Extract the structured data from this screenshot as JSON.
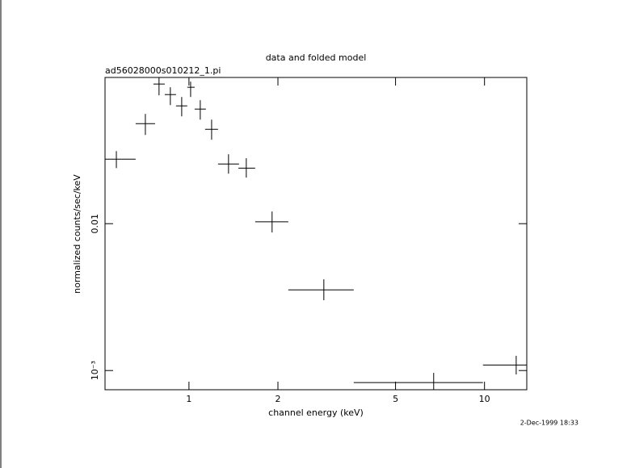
{
  "chart_data": {
    "type": "errorbar",
    "title": "data and folded model",
    "subtitle": "ad56028000s010212_1.pi",
    "x_label": "channel energy (keV)",
    "y_label": "normalized counts/sec/keV",
    "timestamp": "2-Dec-1999 18:33",
    "x_scale": "log",
    "y_scale": "log",
    "xlim": [
      0.52,
      13.9
    ],
    "ylim": [
      0.00074,
      0.099
    ],
    "xticks": [
      1,
      2,
      5,
      10
    ],
    "yticks": [
      {
        "value": 0.001,
        "label": "10⁻³"
      },
      0.01
    ],
    "series": [
      {
        "color": "#000000",
        "x": [
          0.568,
          0.712,
          0.792,
          0.865,
          0.945,
          1.013,
          1.092,
          1.193,
          1.361,
          1.563,
          1.911,
          2.86,
          6.73,
          12.8
        ],
        "x_low": [
          0.52,
          0.66,
          0.758,
          0.828,
          0.904,
          0.987,
          1.045,
          1.134,
          1.254,
          1.47,
          1.675,
          2.168,
          3.61,
          9.88
        ],
        "x_high": [
          0.66,
          0.768,
          0.828,
          0.904,
          0.987,
          1.045,
          1.141,
          1.254,
          1.477,
          1.675,
          2.168,
          3.61,
          9.88,
          13.9
        ],
        "values": [
          0.0275,
          0.048,
          0.0893,
          0.0757,
          0.0634,
          0.0849,
          0.0603,
          0.0439,
          0.0255,
          0.0239,
          0.0103,
          0.00354,
          0.000828,
          0.00109
        ],
        "y_low": [
          0.0239,
          0.0402,
          0.0748,
          0.0642,
          0.0538,
          0.0729,
          0.0511,
          0.0373,
          0.0219,
          0.0206,
          0.00871,
          0.00301,
          0.0007,
          0.00094
        ],
        "y_high": [
          0.0312,
          0.0559,
          0.0989,
          0.0849,
          0.0729,
          0.0927,
          0.0693,
          0.0511,
          0.0297,
          0.0279,
          0.0121,
          0.00418,
          0.000964,
          0.00126
        ]
      }
    ]
  }
}
